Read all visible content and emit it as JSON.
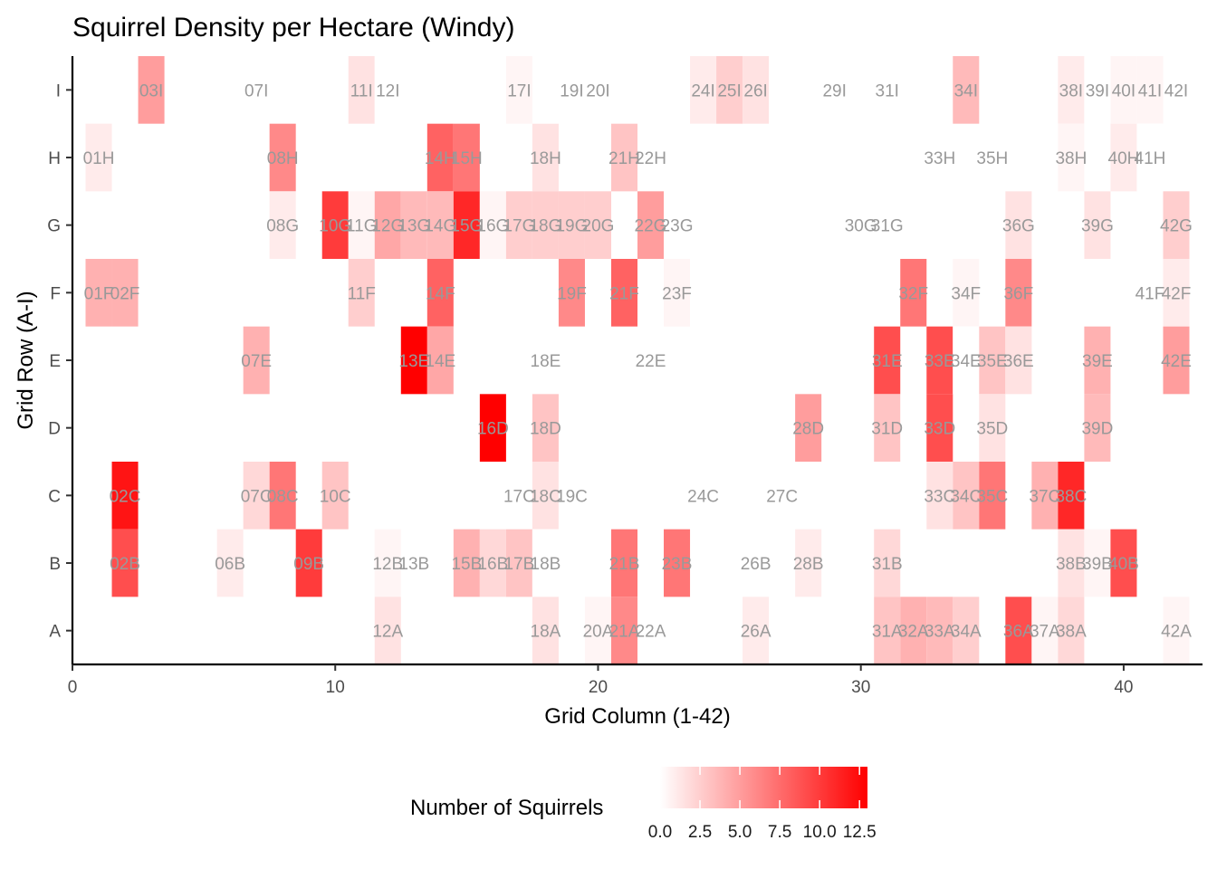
{
  "chart_data": {
    "type": "heatmap",
    "title": "Squirrel Density per Hectare (Windy)",
    "xlabel": "Grid Column (1-42)",
    "ylabel": "Grid Row (A-I)",
    "x_ticks": [
      0,
      10,
      20,
      30,
      40
    ],
    "y_categories": [
      "A",
      "B",
      "C",
      "D",
      "E",
      "F",
      "G",
      "H",
      "I"
    ],
    "xlim": [
      0,
      43
    ],
    "grid": false,
    "legend": {
      "title": "Number of Squirrels",
      "position": "bottom",
      "ticks": [
        "0.0",
        "2.5",
        "5.0",
        "7.5",
        "10.0",
        "12.5"
      ],
      "range": [
        0,
        13
      ],
      "low_color": "#ffffff",
      "high_color": "#ff0000"
    },
    "cells": [
      {
        "col": 1,
        "row": "H",
        "value": 1,
        "label": "01H"
      },
      {
        "col": 1,
        "row": "F",
        "value": 4,
        "label": "01F"
      },
      {
        "col": 2,
        "row": "F",
        "value": 4,
        "label": "02F"
      },
      {
        "col": 2,
        "row": "C",
        "value": 12,
        "label": "02C"
      },
      {
        "col": 2,
        "row": "B",
        "value": 9,
        "label": "02B"
      },
      {
        "col": 3,
        "row": "I",
        "value": 5,
        "label": "03I"
      },
      {
        "col": 6,
        "row": "B",
        "value": 1,
        "label": "06B"
      },
      {
        "col": 7,
        "row": "I",
        "value": 0,
        "label": "07I"
      },
      {
        "col": 7,
        "row": "E",
        "value": 4,
        "label": "07E"
      },
      {
        "col": 7,
        "row": "C",
        "value": 2,
        "label": "07C"
      },
      {
        "col": 8,
        "row": "H",
        "value": 6,
        "label": "08H"
      },
      {
        "col": 8,
        "row": "G",
        "value": 1,
        "label": "08G"
      },
      {
        "col": 8,
        "row": "C",
        "value": 7,
        "label": "08C"
      },
      {
        "col": 9,
        "row": "B",
        "value": 10,
        "label": "09B"
      },
      {
        "col": 10,
        "row": "G",
        "value": 10,
        "label": "10G"
      },
      {
        "col": 10,
        "row": "C",
        "value": 3,
        "label": "10C"
      },
      {
        "col": 11,
        "row": "I",
        "value": 1.5,
        "label": "11I"
      },
      {
        "col": 11,
        "row": "G",
        "value": 0.5,
        "label": "11G"
      },
      {
        "col": 11,
        "row": "F",
        "value": 2.5,
        "label": "11F"
      },
      {
        "col": 12,
        "row": "I",
        "value": 0,
        "label": "12I"
      },
      {
        "col": 12,
        "row": "G",
        "value": 4.5,
        "label": "12G"
      },
      {
        "col": 12,
        "row": "B",
        "value": 0.5,
        "label": "12B"
      },
      {
        "col": 12,
        "row": "A",
        "value": 1.5,
        "label": "12A"
      },
      {
        "col": 13,
        "row": "G",
        "value": 3.5,
        "label": "13G"
      },
      {
        "col": 13,
        "row": "E",
        "value": 13,
        "label": "13E"
      },
      {
        "col": 13,
        "row": "B",
        "value": 0,
        "label": "13B"
      },
      {
        "col": 14,
        "row": "H",
        "value": 8,
        "label": "14H"
      },
      {
        "col": 14,
        "row": "G",
        "value": 3.5,
        "label": "14G"
      },
      {
        "col": 14,
        "row": "F",
        "value": 8,
        "label": "14F"
      },
      {
        "col": 14,
        "row": "E",
        "value": 4.5,
        "label": "14E"
      },
      {
        "col": 15,
        "row": "H",
        "value": 7,
        "label": "15H"
      },
      {
        "col": 15,
        "row": "G",
        "value": 11,
        "label": "15G"
      },
      {
        "col": 15,
        "row": "B",
        "value": 4,
        "label": "15B"
      },
      {
        "col": 16,
        "row": "G",
        "value": 0.5,
        "label": "16G"
      },
      {
        "col": 16,
        "row": "D",
        "value": 13,
        "label": "16D"
      },
      {
        "col": 16,
        "row": "B",
        "value": 2,
        "label": "16B"
      },
      {
        "col": 17,
        "row": "I",
        "value": 0.5,
        "label": "17I"
      },
      {
        "col": 17,
        "row": "G",
        "value": 2.5,
        "label": "17G"
      },
      {
        "col": 17,
        "row": "C",
        "value": 0,
        "label": "17C"
      },
      {
        "col": 17,
        "row": "B",
        "value": 3,
        "label": "17B"
      },
      {
        "col": 18,
        "row": "H",
        "value": 1.5,
        "label": "18H"
      },
      {
        "col": 18,
        "row": "G",
        "value": 2.5,
        "label": "18G"
      },
      {
        "col": 18,
        "row": "E",
        "value": 0,
        "label": "18E"
      },
      {
        "col": 18,
        "row": "D",
        "value": 3,
        "label": "18D"
      },
      {
        "col": 18,
        "row": "C",
        "value": 1.5,
        "label": "18C"
      },
      {
        "col": 18,
        "row": "B",
        "value": 0,
        "label": "18B"
      },
      {
        "col": 18,
        "row": "A",
        "value": 1.5,
        "label": "18A"
      },
      {
        "col": 19,
        "row": "I",
        "value": 0,
        "label": "19I"
      },
      {
        "col": 19,
        "row": "G",
        "value": 2.5,
        "label": "19G"
      },
      {
        "col": 19,
        "row": "F",
        "value": 6,
        "label": "19F"
      },
      {
        "col": 19,
        "row": "C",
        "value": 0,
        "label": "19C"
      },
      {
        "col": 20,
        "row": "I",
        "value": 0,
        "label": "20I"
      },
      {
        "col": 20,
        "row": "G",
        "value": 2.5,
        "label": "20G"
      },
      {
        "col": 20,
        "row": "A",
        "value": 0.5,
        "label": "20A"
      },
      {
        "col": 21,
        "row": "H",
        "value": 3,
        "label": "21H"
      },
      {
        "col": 21,
        "row": "F",
        "value": 8,
        "label": "21F"
      },
      {
        "col": 21,
        "row": "B",
        "value": 7,
        "label": "21B"
      },
      {
        "col": 21,
        "row": "A",
        "value": 6,
        "label": "21A"
      },
      {
        "col": 22,
        "row": "H",
        "value": 0,
        "label": "22H"
      },
      {
        "col": 22,
        "row": "G",
        "value": 5,
        "label": "22G"
      },
      {
        "col": 22,
        "row": "E",
        "value": 0,
        "label": "22E"
      },
      {
        "col": 22,
        "row": "A",
        "value": 0,
        "label": "22A"
      },
      {
        "col": 23,
        "row": "G",
        "value": 0,
        "label": "23G"
      },
      {
        "col": 23,
        "row": "F",
        "value": 0.5,
        "label": "23F"
      },
      {
        "col": 23,
        "row": "B",
        "value": 7,
        "label": "23B"
      },
      {
        "col": 24,
        "row": "I",
        "value": 1,
        "label": "24I"
      },
      {
        "col": 24,
        "row": "C",
        "value": 0,
        "label": "24C"
      },
      {
        "col": 25,
        "row": "I",
        "value": 2.5,
        "label": "25I"
      },
      {
        "col": 26,
        "row": "I",
        "value": 1.5,
        "label": "26I"
      },
      {
        "col": 26,
        "row": "B",
        "value": 0,
        "label": "26B"
      },
      {
        "col": 26,
        "row": "A",
        "value": 1,
        "label": "26A"
      },
      {
        "col": 27,
        "row": "C",
        "value": 0,
        "label": "27C"
      },
      {
        "col": 28,
        "row": "D",
        "value": 5,
        "label": "28D"
      },
      {
        "col": 28,
        "row": "B",
        "value": 1,
        "label": "28B"
      },
      {
        "col": 29,
        "row": "I",
        "value": 0,
        "label": "29I"
      },
      {
        "col": 30,
        "row": "G",
        "value": 0,
        "label": "30G"
      },
      {
        "col": 31,
        "row": "I",
        "value": 0,
        "label": "31I"
      },
      {
        "col": 31,
        "row": "G",
        "value": 0,
        "label": "31G"
      },
      {
        "col": 31,
        "row": "E",
        "value": 9,
        "label": "31E"
      },
      {
        "col": 31,
        "row": "D",
        "value": 3,
        "label": "31D"
      },
      {
        "col": 31,
        "row": "B",
        "value": 2,
        "label": "31B"
      },
      {
        "col": 31,
        "row": "A",
        "value": 3,
        "label": "31A"
      },
      {
        "col": 32,
        "row": "F",
        "value": 7,
        "label": "32F"
      },
      {
        "col": 32,
        "row": "A",
        "value": 4,
        "label": "32A"
      },
      {
        "col": 33,
        "row": "H",
        "value": 0,
        "label": "33H"
      },
      {
        "col": 33,
        "row": "E",
        "value": 9,
        "label": "33E"
      },
      {
        "col": 33,
        "row": "D",
        "value": 9,
        "label": "33D"
      },
      {
        "col": 33,
        "row": "C",
        "value": 1.5,
        "label": "33C"
      },
      {
        "col": 33,
        "row": "A",
        "value": 3.5,
        "label": "33A"
      },
      {
        "col": 34,
        "row": "I",
        "value": 3.5,
        "label": "34I"
      },
      {
        "col": 34,
        "row": "F",
        "value": 0.5,
        "label": "34F"
      },
      {
        "col": 34,
        "row": "E",
        "value": 0,
        "label": "34E"
      },
      {
        "col": 34,
        "row": "C",
        "value": 3,
        "label": "34C"
      },
      {
        "col": 34,
        "row": "A",
        "value": 2.5,
        "label": "34A"
      },
      {
        "col": 35,
        "row": "H",
        "value": 0,
        "label": "35H"
      },
      {
        "col": 35,
        "row": "E",
        "value": 3,
        "label": "35E"
      },
      {
        "col": 35,
        "row": "D",
        "value": 1.5,
        "label": "35D"
      },
      {
        "col": 35,
        "row": "C",
        "value": 7,
        "label": "35C"
      },
      {
        "col": 36,
        "row": "G",
        "value": 1.5,
        "label": "36G"
      },
      {
        "col": 36,
        "row": "F",
        "value": 6,
        "label": "36F"
      },
      {
        "col": 36,
        "row": "E",
        "value": 1.5,
        "label": "36E"
      },
      {
        "col": 36,
        "row": "A",
        "value": 9,
        "label": "36A"
      },
      {
        "col": 37,
        "row": "C",
        "value": 4,
        "label": "37C"
      },
      {
        "col": 37,
        "row": "A",
        "value": 0.5,
        "label": "37A"
      },
      {
        "col": 38,
        "row": "I",
        "value": 1,
        "label": "38I"
      },
      {
        "col": 38,
        "row": "H",
        "value": 0.5,
        "label": "38H"
      },
      {
        "col": 38,
        "row": "C",
        "value": 11,
        "label": "38C"
      },
      {
        "col": 38,
        "row": "B",
        "value": 1.5,
        "label": "38B"
      },
      {
        "col": 38,
        "row": "A",
        "value": 2,
        "label": "38A"
      },
      {
        "col": 39,
        "row": "I",
        "value": 0,
        "label": "39I"
      },
      {
        "col": 39,
        "row": "G",
        "value": 1.5,
        "label": "39G"
      },
      {
        "col": 39,
        "row": "E",
        "value": 4,
        "label": "39E"
      },
      {
        "col": 39,
        "row": "D",
        "value": 3.5,
        "label": "39D"
      },
      {
        "col": 39,
        "row": "B",
        "value": 0.5,
        "label": "39B"
      },
      {
        "col": 40,
        "row": "I",
        "value": 0.5,
        "label": "40I"
      },
      {
        "col": 40,
        "row": "H",
        "value": 1,
        "label": "40H"
      },
      {
        "col": 40,
        "row": "B",
        "value": 9,
        "label": "40B"
      },
      {
        "col": 41,
        "row": "I",
        "value": 0.5,
        "label": "41I"
      },
      {
        "col": 41,
        "row": "H",
        "value": 0,
        "label": "41H"
      },
      {
        "col": 41,
        "row": "F",
        "value": 0,
        "label": "41F"
      },
      {
        "col": 42,
        "row": "I",
        "value": 0,
        "label": "42I"
      },
      {
        "col": 42,
        "row": "G",
        "value": 2.5,
        "label": "42G"
      },
      {
        "col": 42,
        "row": "F",
        "value": 1,
        "label": "42F"
      },
      {
        "col": 42,
        "row": "E",
        "value": 5,
        "label": "42E"
      },
      {
        "col": 42,
        "row": "A",
        "value": 0.5,
        "label": "42A"
      }
    ]
  }
}
